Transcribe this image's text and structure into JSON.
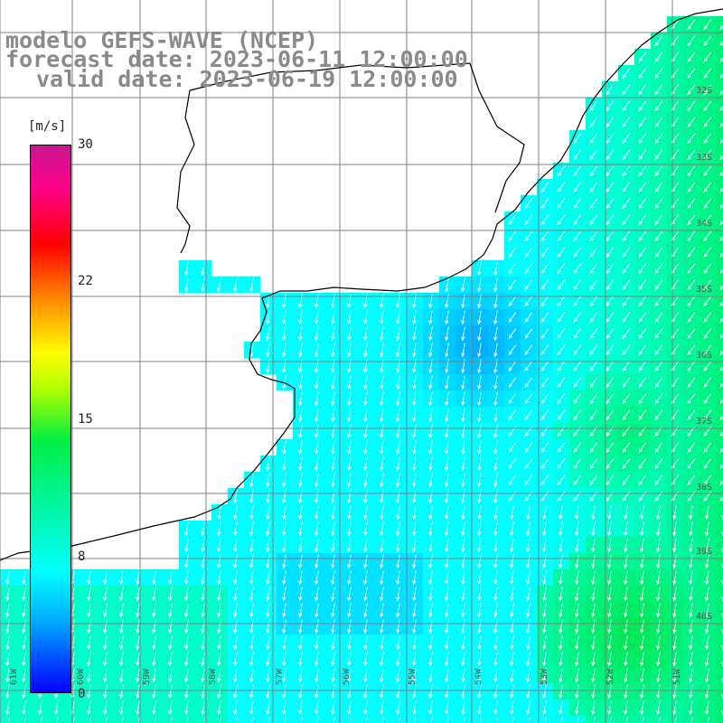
{
  "title": {
    "line1": "modelo GEFS-WAVE (NCEP)",
    "line2": "forecast date: 2023-06-11 12:00:00",
    "line3": "valid date: 2023-06-19 12:00:00"
  },
  "colorbar": {
    "unit": "[m/s]",
    "ticks": [
      "30",
      "22",
      "15",
      "8",
      "0"
    ],
    "colors": [
      "#0000ff",
      "#00aaff",
      "#00ffff",
      "#00ee44",
      "#ffff00",
      "#ff8800",
      "#ff0000",
      "#c81890"
    ]
  },
  "lat_labels": [
    "32S",
    "33S",
    "34S",
    "35S",
    "36S",
    "37S",
    "38S",
    "39S",
    "40S"
  ],
  "lon_labels": [
    "61W",
    "60W",
    "59W",
    "58W",
    "57W",
    "56W",
    "55W",
    "54W",
    "53W",
    "52W",
    "51W"
  ],
  "colors": {
    "land": "#ffffff",
    "grid": "#7f7f7f",
    "coast": "#000000",
    "arrow": "#ffffff"
  }
}
